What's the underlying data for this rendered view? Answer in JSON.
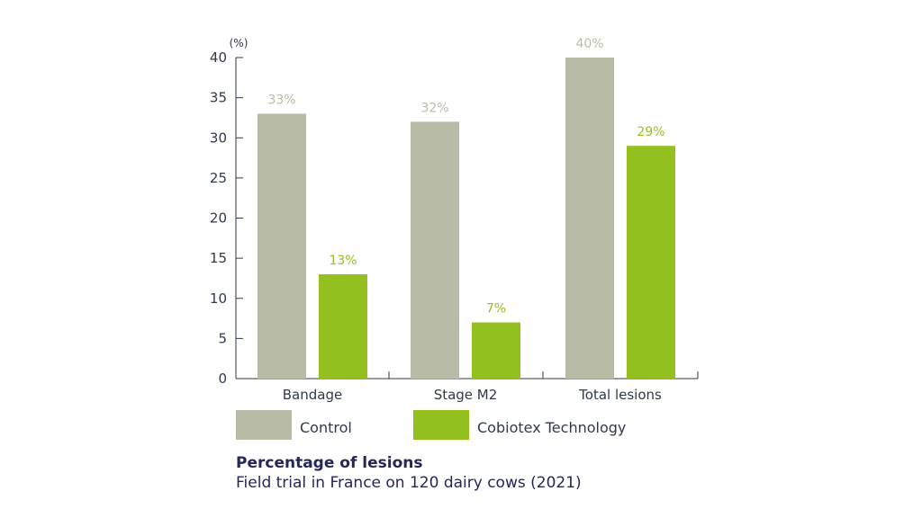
{
  "chart_data": {
    "type": "bar",
    "title": "Percentage of lesions",
    "subtitle": "Field trial in France on 120 dairy cows (2021)",
    "ylabel": "(%)",
    "xlabel": "",
    "ylim": [
      0,
      40
    ],
    "yticks": [
      0,
      5,
      10,
      15,
      20,
      25,
      30,
      35,
      40
    ],
    "categories": [
      "Bandage",
      "Stage M2",
      "Total lesions"
    ],
    "series": [
      {
        "name": "Control",
        "values": [
          33,
          32,
          40
        ],
        "labels": [
          "33%",
          "32%",
          "40%"
        ],
        "color": "#b8bba6"
      },
      {
        "name": "Cobiotex Technology",
        "values": [
          13,
          7,
          29
        ],
        "labels": [
          "13%",
          "7%",
          "29%"
        ],
        "color": "#93c01f"
      }
    ],
    "legend_position": "bottom",
    "grid": false
  },
  "colors": {
    "axis": "#2f3a4a",
    "title": "#22285a"
  }
}
